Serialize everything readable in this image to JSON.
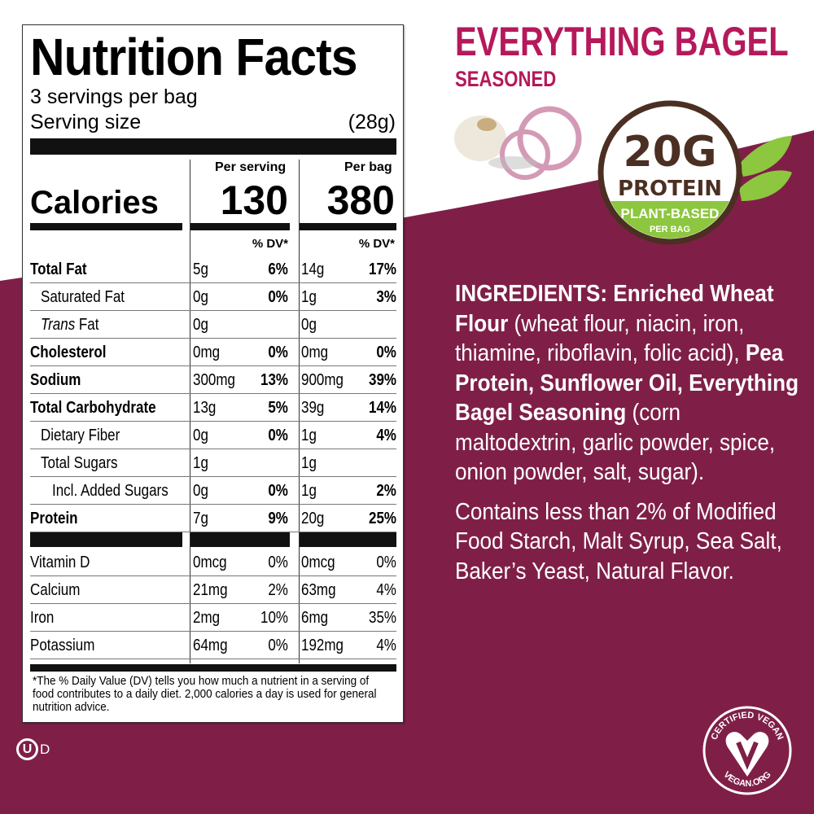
{
  "product": {
    "title": "EVERYTHING BAGEL",
    "subtitle": "SEASONED",
    "title_color": "#b5195b",
    "bg_color": "#7f1f47"
  },
  "badge": {
    "amount": "20G",
    "word": "PROTEIN",
    "line1": "PLANT-BASED",
    "line2": "PER BAG",
    "brown": "#4b2f22",
    "green": "#8dc63f"
  },
  "nutrition": {
    "title": "Nutrition Facts",
    "servings": "3 servings per bag",
    "serving_size_label": "Serving size",
    "serving_size": "(28g)",
    "per_serving": "Per serving",
    "per_bag": "Per bag",
    "calories_label": "Calories",
    "calories_serving": "130",
    "calories_bag": "380",
    "dv_header": "% DV*",
    "rows": [
      {
        "name": "Total Fat",
        "bold": true,
        "indent": 0,
        "s_amt": "5g",
        "s_dv": "6%",
        "b_amt": "14g",
        "b_dv": "17%"
      },
      {
        "name": "Saturated Fat",
        "indent": 1,
        "s_amt": "0g",
        "s_dv": "0%",
        "b_amt": "1g",
        "b_dv": "3%"
      },
      {
        "name": "Trans Fat",
        "italic_prefix": "Trans",
        "indent": 1,
        "s_amt": "0g",
        "s_dv": "",
        "b_amt": "0g",
        "b_dv": ""
      },
      {
        "name": "Cholesterol",
        "bold": true,
        "indent": 0,
        "s_amt": "0mg",
        "s_dv": "0%",
        "b_amt": "0mg",
        "b_dv": "0%"
      },
      {
        "name": "Sodium",
        "bold": true,
        "indent": 0,
        "s_amt": "300mg",
        "s_dv": "13%",
        "b_amt": "900mg",
        "b_dv": "39%"
      },
      {
        "name": "Total Carbohydrate",
        "bold": true,
        "indent": 0,
        "s_amt": "13g",
        "s_dv": "5%",
        "b_amt": "39g",
        "b_dv": "14%"
      },
      {
        "name": "Dietary Fiber",
        "indent": 1,
        "s_amt": "0g",
        "s_dv": "0%",
        "b_amt": "1g",
        "b_dv": "4%"
      },
      {
        "name": "Total Sugars",
        "indent": 1,
        "s_amt": "1g",
        "s_dv": "",
        "b_amt": "1g",
        "b_dv": ""
      },
      {
        "name": "Incl. Added Sugars",
        "indent": 2,
        "s_amt": "0g",
        "s_dv": "0%",
        "b_amt": "1g",
        "b_dv": "2%"
      },
      {
        "name": "Protein",
        "bold": true,
        "indent": 0,
        "s_amt": "7g",
        "s_dv": "9%",
        "b_amt": "20g",
        "b_dv": "25%"
      }
    ],
    "vitamins": [
      {
        "name": "Vitamin D",
        "s_amt": "0mcg",
        "s_dv": "0%",
        "b_amt": "0mcg",
        "b_dv": "0%"
      },
      {
        "name": "Calcium",
        "s_amt": "21mg",
        "s_dv": "2%",
        "b_amt": "63mg",
        "b_dv": "4%"
      },
      {
        "name": "Iron",
        "s_amt": "2mg",
        "s_dv": "10%",
        "b_amt": "6mg",
        "b_dv": "35%"
      },
      {
        "name": "Potassium",
        "s_amt": "64mg",
        "s_dv": "0%",
        "b_amt": "192mg",
        "b_dv": "4%"
      }
    ],
    "footnote": "*The % Daily Value (DV) tells you how much a nutrient in a serving of food contributes to a daily diet. 2,000 calories a day is used for general nutrition advice."
  },
  "ingredients": {
    "heading": "INGREDIENTS: Enriched Wheat Flour",
    "p1": " (wheat flour, niacin, iron, thiamine, riboflavin, folic acid), ",
    "b2": "Pea Protein, Sunflower Oil, Everything Bagel Seasoning",
    "p2": " (corn maltodextrin, garlic powder, spice, onion powder, salt, sugar).",
    "contains": "Contains less than 2% of Modified Food Starch, Malt Syrup, Sea Salt, Baker’s Yeast, Natural Flavor."
  },
  "logos": {
    "kosher": "D",
    "vegan_top": "CERTIFIED VEGAN",
    "vegan_bottom": "VEGAN.ORG"
  }
}
